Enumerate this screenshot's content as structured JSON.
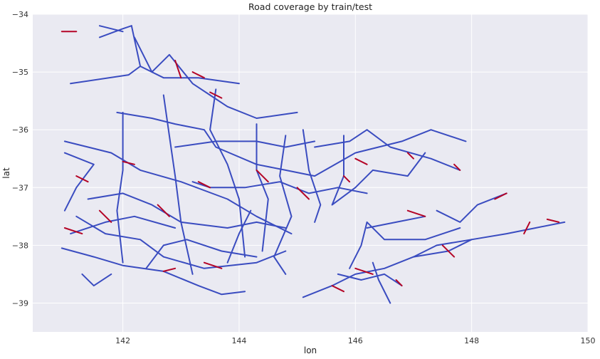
{
  "chart_data": {
    "type": "line",
    "title": "Road coverage by train/test",
    "xlabel": "lon",
    "ylabel": "lat",
    "xlim": [
      140.45,
      150.0
    ],
    "ylim": [
      -39.5,
      -34.0
    ],
    "xticks": [
      "142",
      "144",
      "146",
      "148",
      "150"
    ],
    "yticks": [
      "−34",
      "−35",
      "−36",
      "−37",
      "−38",
      "−39"
    ],
    "xtick_values": [
      142,
      144,
      146,
      148,
      150
    ],
    "ytick_values": [
      -34,
      -35,
      -36,
      -37,
      -38,
      -39
    ],
    "grid": true,
    "background": "#eaeaf2",
    "series": [
      {
        "color": "#3a4cc0",
        "segments": [
          [
            [
              141.6,
              -34.4
            ],
            [
              142.0,
              -34.25
            ],
            [
              142.15,
              -34.2
            ]
          ],
          [
            [
              142.15,
              -34.2
            ],
            [
              142.3,
              -34.9
            ],
            [
              142.1,
              -35.05
            ],
            [
              141.1,
              -35.2
            ]
          ],
          [
            [
              142.2,
              -34.4
            ],
            [
              142.5,
              -35.0
            ],
            [
              142.8,
              -34.7
            ],
            [
              143.2,
              -35.2
            ],
            [
              143.5,
              -35.4
            ],
            [
              143.8,
              -35.6
            ],
            [
              144.3,
              -35.8
            ],
            [
              145.0,
              -35.7
            ]
          ],
          [
            [
              142.3,
              -34.9
            ],
            [
              142.7,
              -35.1
            ],
            [
              143.3,
              -35.1
            ],
            [
              144.0,
              -35.2
            ]
          ],
          [
            [
              141.9,
              -35.7
            ],
            [
              142.5,
              -35.8
            ],
            [
              142.9,
              -35.9
            ],
            [
              143.4,
              -36.0
            ],
            [
              143.6,
              -36.3
            ],
            [
              144.3,
              -36.6
            ],
            [
              144.8,
              -36.7
            ],
            [
              145.3,
              -36.8
            ],
            [
              146.0,
              -36.4
            ],
            [
              146.8,
              -36.2
            ],
            [
              147.3,
              -36.0
            ],
            [
              147.9,
              -36.2
            ]
          ],
          [
            [
              141.0,
              -36.2
            ],
            [
              141.8,
              -36.4
            ],
            [
              142.3,
              -36.7
            ],
            [
              143.0,
              -36.9
            ],
            [
              143.8,
              -37.2
            ],
            [
              144.3,
              -37.5
            ],
            [
              144.9,
              -37.8
            ]
          ],
          [
            [
              141.0,
              -36.4
            ],
            [
              141.5,
              -36.6
            ],
            [
              141.2,
              -37.0
            ],
            [
              141.0,
              -37.4
            ]
          ],
          [
            [
              141.2,
              -37.5
            ],
            [
              141.7,
              -37.8
            ],
            [
              142.3,
              -37.9
            ],
            [
              142.7,
              -38.2
            ],
            [
              143.4,
              -38.4
            ],
            [
              144.3,
              -38.3
            ],
            [
              144.8,
              -38.1
            ]
          ],
          [
            [
              140.95,
              -38.05
            ],
            [
              141.5,
              -38.2
            ],
            [
              142.0,
              -38.35
            ],
            [
              142.7,
              -38.45
            ],
            [
              143.3,
              -38.7
            ],
            [
              143.7,
              -38.85
            ],
            [
              144.1,
              -38.8
            ]
          ],
          [
            [
              141.4,
              -37.2
            ],
            [
              142.0,
              -37.1
            ],
            [
              142.5,
              -37.3
            ],
            [
              143.0,
              -37.6
            ],
            [
              143.8,
              -37.7
            ],
            [
              144.3,
              -37.6
            ],
            [
              144.8,
              -37.7
            ]
          ],
          [
            [
              142.0,
              -35.7
            ],
            [
              142.0,
              -36.7
            ],
            [
              141.9,
              -37.4
            ],
            [
              142.0,
              -38.3
            ]
          ],
          [
            [
              142.7,
              -35.4
            ],
            [
              142.8,
              -36.1
            ],
            [
              142.9,
              -36.8
            ],
            [
              143.0,
              -37.6
            ],
            [
              143.2,
              -38.5
            ]
          ],
          [
            [
              143.6,
              -35.3
            ],
            [
              143.5,
              -36.0
            ],
            [
              143.8,
              -36.6
            ],
            [
              144.0,
              -37.2
            ],
            [
              144.1,
              -38.2
            ]
          ],
          [
            [
              144.3,
              -35.9
            ],
            [
              144.3,
              -36.7
            ],
            [
              144.5,
              -37.2
            ],
            [
              144.4,
              -38.1
            ]
          ],
          [
            [
              144.8,
              -36.1
            ],
            [
              144.7,
              -36.8
            ],
            [
              144.9,
              -37.5
            ],
            [
              144.6,
              -38.2
            ],
            [
              144.8,
              -38.5
            ]
          ],
          [
            [
              145.1,
              -36.0
            ],
            [
              145.2,
              -36.7
            ],
            [
              145.4,
              -37.3
            ],
            [
              145.3,
              -37.6
            ]
          ],
          [
            [
              145.3,
              -36.3
            ],
            [
              145.9,
              -36.2
            ],
            [
              146.2,
              -36.0
            ],
            [
              146.6,
              -36.3
            ],
            [
              147.3,
              -36.5
            ],
            [
              147.8,
              -36.7
            ]
          ],
          [
            [
              145.8,
              -36.1
            ],
            [
              145.8,
              -36.8
            ],
            [
              145.6,
              -37.3
            ],
            [
              146.0,
              -37.0
            ],
            [
              146.3,
              -36.7
            ],
            [
              146.9,
              -36.8
            ],
            [
              147.2,
              -36.4
            ]
          ],
          [
            [
              142.9,
              -36.3
            ],
            [
              143.6,
              -36.2
            ],
            [
              144.3,
              -36.2
            ],
            [
              144.8,
              -36.3
            ],
            [
              145.3,
              -36.2
            ]
          ],
          [
            [
              143.2,
              -36.9
            ],
            [
              143.5,
              -37.0
            ],
            [
              144.1,
              -37.0
            ],
            [
              144.7,
              -36.9
            ],
            [
              145.2,
              -37.1
            ],
            [
              145.7,
              -37.0
            ],
            [
              146.2,
              -37.1
            ]
          ],
          [
            [
              141.1,
              -37.8
            ],
            [
              141.7,
              -37.6
            ],
            [
              142.2,
              -37.5
            ],
            [
              142.9,
              -37.7
            ]
          ],
          [
            [
              142.4,
              -38.4
            ],
            [
              142.7,
              -38.0
            ],
            [
              143.1,
              -37.9
            ],
            [
              143.7,
              -38.1
            ],
            [
              144.3,
              -38.2
            ]
          ],
          [
            [
              144.2,
              -37.4
            ],
            [
              144.0,
              -37.8
            ],
            [
              143.8,
              -38.3
            ]
          ],
          [
            [
              145.1,
              -38.9
            ],
            [
              145.6,
              -38.7
            ],
            [
              146.0,
              -38.5
            ],
            [
              146.5,
              -38.4
            ],
            [
              147.0,
              -38.2
            ],
            [
              147.4,
              -38.0
            ],
            [
              148.0,
              -37.9
            ],
            [
              148.6,
              -37.8
            ],
            [
              149.1,
              -37.7
            ],
            [
              149.6,
              -37.6
            ]
          ],
          [
            [
              145.9,
              -38.4
            ],
            [
              146.1,
              -38.0
            ],
            [
              146.2,
              -37.6
            ],
            [
              146.5,
              -37.9
            ],
            [
              147.2,
              -37.9
            ],
            [
              147.8,
              -37.7
            ]
          ],
          [
            [
              146.3,
              -38.3
            ],
            [
              146.4,
              -38.6
            ],
            [
              146.6,
              -39.0
            ]
          ],
          [
            [
              147.0,
              -38.2
            ],
            [
              147.6,
              -38.1
            ],
            [
              148.0,
              -37.9
            ]
          ],
          [
            [
              147.4,
              -37.4
            ],
            [
              147.8,
              -37.6
            ],
            [
              148.1,
              -37.3
            ],
            [
              148.6,
              -37.1
            ]
          ],
          [
            [
              146.2,
              -37.7
            ],
            [
              146.7,
              -37.6
            ],
            [
              147.2,
              -37.5
            ]
          ],
          [
            [
              146.8,
              -38.7
            ],
            [
              146.5,
              -38.5
            ],
            [
              146.1,
              -38.6
            ],
            [
              145.7,
              -38.5
            ]
          ],
          [
            [
              141.6,
              -34.2
            ],
            [
              142.0,
              -34.3
            ]
          ],
          [
            [
              141.8,
              -38.5
            ],
            [
              141.5,
              -38.7
            ],
            [
              141.3,
              -38.5
            ]
          ]
        ]
      },
      {
        "color": "#b40426",
        "segments": [
          [
            [
              140.95,
              -34.3
            ],
            [
              141.2,
              -34.3
            ]
          ],
          [
            [
              142.9,
              -34.8
            ],
            [
              143.0,
              -35.1
            ]
          ],
          [
            [
              143.2,
              -35.0
            ],
            [
              143.4,
              -35.1
            ]
          ],
          [
            [
              143.5,
              -35.35
            ],
            [
              143.7,
              -35.45
            ]
          ],
          [
            [
              142.0,
              -36.55
            ],
            [
              142.2,
              -36.6
            ]
          ],
          [
            [
              141.2,
              -36.8
            ],
            [
              141.4,
              -36.9
            ]
          ],
          [
            [
              141.0,
              -37.7
            ],
            [
              141.3,
              -37.8
            ]
          ],
          [
            [
              142.6,
              -37.3
            ],
            [
              142.8,
              -37.5
            ]
          ],
          [
            [
              143.3,
              -36.9
            ],
            [
              143.5,
              -37.0
            ]
          ],
          [
            [
              144.3,
              -36.7
            ],
            [
              144.5,
              -36.9
            ]
          ],
          [
            [
              145.0,
              -37.0
            ],
            [
              145.2,
              -37.2
            ]
          ],
          [
            [
              146.0,
              -36.5
            ],
            [
              146.2,
              -36.6
            ]
          ],
          [
            [
              146.9,
              -36.4
            ],
            [
              147.0,
              -36.5
            ]
          ],
          [
            [
              147.7,
              -36.6
            ],
            [
              147.8,
              -36.7
            ]
          ],
          [
            [
              143.4,
              -38.3
            ],
            [
              143.7,
              -38.4
            ]
          ],
          [
            [
              142.7,
              -38.45
            ],
            [
              142.9,
              -38.4
            ]
          ],
          [
            [
              141.6,
              -37.4
            ],
            [
              141.8,
              -37.6
            ]
          ],
          [
            [
              146.9,
              -37.4
            ],
            [
              147.2,
              -37.5
            ]
          ],
          [
            [
              147.5,
              -38.0
            ],
            [
              147.7,
              -38.2
            ]
          ],
          [
            [
              146.0,
              -38.4
            ],
            [
              146.3,
              -38.5
            ]
          ],
          [
            [
              145.6,
              -38.7
            ],
            [
              145.8,
              -38.8
            ]
          ],
          [
            [
              148.4,
              -37.2
            ],
            [
              148.6,
              -37.1
            ]
          ],
          [
            [
              148.9,
              -37.8
            ],
            [
              149.0,
              -37.6
            ]
          ],
          [
            [
              149.3,
              -37.55
            ],
            [
              149.5,
              -37.6
            ]
          ],
          [
            [
              146.7,
              -38.6
            ],
            [
              146.8,
              -38.7
            ]
          ],
          [
            [
              145.8,
              -36.8
            ],
            [
              145.9,
              -36.9
            ]
          ]
        ]
      }
    ]
  }
}
